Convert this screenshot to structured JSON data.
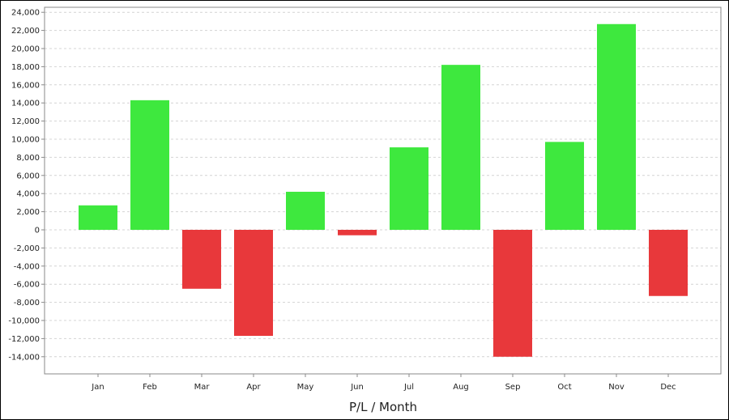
{
  "chart_data": {
    "type": "bar",
    "xlabel": "P/L / Month",
    "ylabel": "",
    "title": "",
    "categories": [
      "Jan",
      "Feb",
      "Mar",
      "Apr",
      "May",
      "Jun",
      "Jul",
      "Aug",
      "Sep",
      "Oct",
      "Nov",
      "Dec"
    ],
    "values": [
      2700,
      14300,
      -6500,
      -11700,
      4200,
      -600,
      9100,
      18200,
      -14000,
      9700,
      22700,
      -7300
    ],
    "ylim": [
      -16000,
      24000
    ],
    "yticks": [
      24000,
      22000,
      20000,
      18000,
      16000,
      14000,
      12000,
      10000,
      8000,
      6000,
      4000,
      2000,
      0,
      -2000,
      -4000,
      -6000,
      -8000,
      -10000,
      -12000,
      -14000
    ],
    "ytick_labels": [
      "24,000",
      "22,000",
      "20,000",
      "18,000",
      "16,000",
      "14,000",
      "12,000",
      "10,000",
      "8,000",
      "6,000",
      "4,000",
      "2,000",
      "0",
      "-2,000",
      "-4,000",
      "-6,000",
      "-8,000",
      "-10,000",
      "-12,000",
      "-14,000"
    ],
    "grid": true,
    "colors": {
      "positive": "#3ee83e",
      "negative": "#e8383b",
      "grid": "#d4d4d4",
      "axis": "#8a8a8a"
    }
  }
}
